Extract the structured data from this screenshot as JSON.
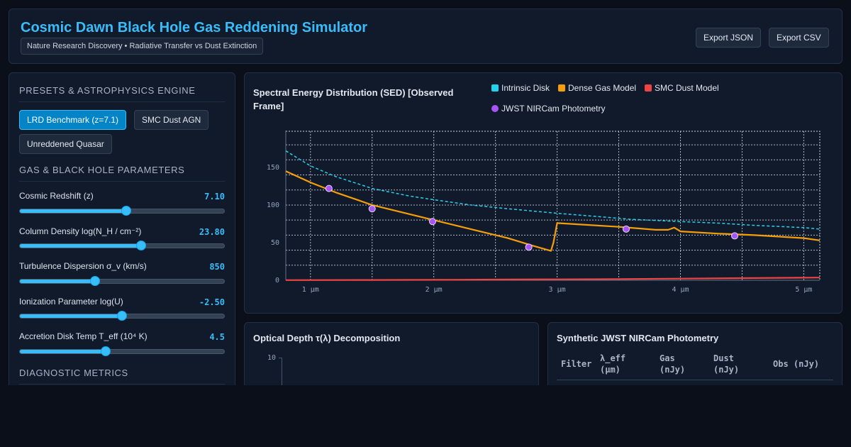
{
  "header": {
    "title": "Cosmic Dawn Black Hole Gas Reddening Simulator",
    "subtitle": "Nature Research Discovery • Radiative Transfer vs Dust Extinction",
    "export_json": "Export JSON",
    "export_csv": "Export CSV"
  },
  "sidebar": {
    "presets_title": "PRESETS & ASTROPHYSICS ENGINE",
    "presets": [
      {
        "label": "LRD Benchmark (z=7.1)",
        "active": true
      },
      {
        "label": "SMC Dust AGN",
        "active": false
      },
      {
        "label": "Unreddened Quasar",
        "active": false
      }
    ],
    "params_title": "GAS & BLACK HOLE PARAMETERS",
    "params": [
      {
        "label": "Cosmic Redshift (z)",
        "value": "7.10",
        "fraction": 0.52
      },
      {
        "label": "Column Density log(N_H / cm⁻²)",
        "value": "23.80",
        "fraction": 0.594
      },
      {
        "label": "Turbulence Dispersion σ_v (km/s)",
        "value": "850",
        "fraction": 0.369
      },
      {
        "label": "Ionization Parameter log(U)",
        "value": "-2.50",
        "fraction": 0.5
      },
      {
        "label": "Accretion Disk Temp T_eff (10⁴ K)",
        "value": "4.5",
        "fraction": 0.421
      }
    ],
    "diagnostics_title": "DIAGNOSTIC METRICS"
  },
  "sed": {
    "title_line1": "Spectral Energy Distribution (SED) [Observed",
    "title_line2": "Frame]",
    "legend": [
      {
        "label": "Intrinsic Disk",
        "color": "#22d3ee",
        "shape": "square"
      },
      {
        "label": "Dense Gas Model",
        "color": "#f59e0b",
        "shape": "square"
      },
      {
        "label": "SMC Dust Model",
        "color": "#ef4444",
        "shape": "square"
      },
      {
        "label": "JWST NIRCam Photometry",
        "color": "#a855f7",
        "shape": "circle"
      }
    ]
  },
  "chart_data": {
    "type": "line",
    "xlabel": "",
    "ylabel": "",
    "xlim": [
      0.8,
      5.13
    ],
    "ylim": [
      0,
      198
    ],
    "x_ticks": [
      1,
      2,
      3,
      4,
      5
    ],
    "x_tick_labels": [
      "1 µm",
      "2 µm",
      "3 µm",
      "4 µm",
      "5 µm"
    ],
    "y_ticks": [
      0,
      50,
      100,
      150
    ],
    "grid": true,
    "series": [
      {
        "name": "Intrinsic Disk",
        "color": "#22d3ee",
        "dashed": true,
        "x": [
          0.8,
          1.0,
          1.2,
          1.5,
          1.8,
          2.0,
          2.3,
          2.6,
          3.0,
          3.3,
          3.6,
          4.0,
          4.3,
          4.6,
          5.0,
          5.13
        ],
        "y": [
          172,
          152,
          138,
          122,
          112,
          107,
          100,
          95,
          89,
          85,
          81,
          78,
          76,
          73,
          70,
          68
        ]
      },
      {
        "name": "Dense Gas Model",
        "color": "#f59e0b",
        "dashed": false,
        "x": [
          0.8,
          1.0,
          1.2,
          1.5,
          1.8,
          2.0,
          2.3,
          2.6,
          2.8,
          2.95,
          2.97,
          3.0,
          3.2,
          3.5,
          3.8,
          3.9,
          3.95,
          4.0,
          4.3,
          4.6,
          5.0,
          5.13
        ],
        "y": [
          145,
          130,
          117,
          100,
          88,
          80,
          68,
          56,
          46,
          39,
          50,
          76,
          74,
          71,
          67,
          67,
          70,
          65,
          62,
          60,
          56,
          53
        ]
      },
      {
        "name": "SMC Dust Model",
        "color": "#ef4444",
        "dashed": false,
        "x": [
          0.8,
          1.5,
          2.0,
          2.5,
          3.0,
          3.5,
          4.0,
          4.5,
          5.0,
          5.13
        ],
        "y": [
          0.2,
          0.4,
          0.6,
          0.9,
          1.2,
          1.6,
          2.2,
          2.8,
          3.4,
          3.6
        ]
      },
      {
        "name": "JWST NIRCam Photometry",
        "color": "#a855f7",
        "type": "scatter",
        "x": [
          1.15,
          1.5,
          1.99,
          2.77,
          3.56,
          4.44
        ],
        "y": [
          122,
          95,
          78,
          44,
          68,
          59
        ]
      }
    ]
  },
  "tau": {
    "title": "Optical Depth τ(λ) Decomposition",
    "y_tick_top": "10"
  },
  "photometry": {
    "title": "Synthetic JWST NIRCam Photometry",
    "columns": [
      {
        "line1": "Filter",
        "line2": ""
      },
      {
        "line1": "λ_eff",
        "line2": "(µm)"
      },
      {
        "line1": "Gas",
        "line2": "(nJy)"
      },
      {
        "line1": "Dust",
        "line2": "(nJy)"
      },
      {
        "line1": "Obs (nJy)",
        "line2": ""
      }
    ]
  }
}
